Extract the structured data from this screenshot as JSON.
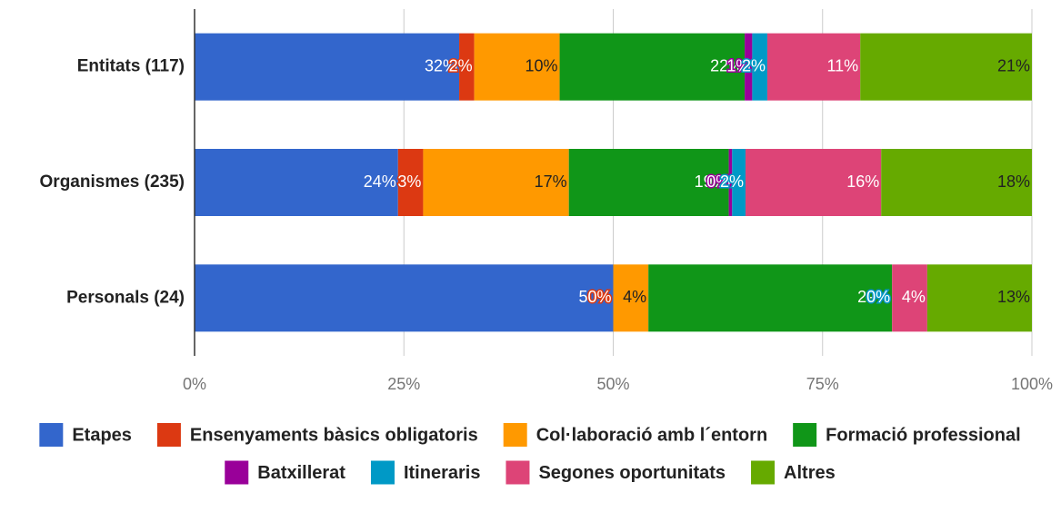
{
  "chart_data": {
    "type": "stacked-bar-horizontal",
    "categories": [
      "Entitats (117)",
      "Organismes (235)",
      "Personals (24)"
    ],
    "series": [
      {
        "name": "Etapes",
        "color": "#3366cc",
        "values": [
          31.6,
          24.3,
          50
        ],
        "value_labels": [
          "32%",
          "24%",
          "50%"
        ]
      },
      {
        "name": "Ensenyaments bàsics obligatoris",
        "color": "#dc3912",
        "values": [
          1.8,
          3.0,
          0
        ],
        "value_labels": [
          "2%",
          "3%",
          "0%"
        ]
      },
      {
        "name": "Col·laboració amb l´entorn",
        "color": "#ff9900",
        "values": [
          10.2,
          17.4,
          4.2
        ],
        "value_labels": [
          "10%",
          "17%",
          "4%"
        ]
      },
      {
        "name": "Formació professional",
        "color": "#109618",
        "values": [
          22.1,
          19.1,
          29.1
        ],
        "value_labels": [
          "22%",
          "19%",
          "29%"
        ]
      },
      {
        "name": "Batxillerat",
        "color": "#990099",
        "values": [
          0.9,
          0.4,
          0
        ],
        "value_labels": [
          "1%",
          "0%",
          "0%"
        ]
      },
      {
        "name": "Itineraris",
        "color": "#0099c6",
        "values": [
          1.8,
          1.6,
          0
        ],
        "value_labels": [
          "2%",
          "2%",
          "0%"
        ]
      },
      {
        "name": "Segones oportunitats",
        "color": "#dd4477",
        "values": [
          11.1,
          16.2,
          4.2
        ],
        "value_labels": [
          "11%",
          "16%",
          "4%"
        ]
      },
      {
        "name": "Altres",
        "color": "#66aa00",
        "values": [
          20.5,
          18.0,
          12.5
        ],
        "value_labels": [
          "21%",
          "18%",
          "13%"
        ]
      }
    ],
    "xlim": [
      0,
      100
    ],
    "xticks": [
      {
        "value": 0,
        "label": "0%"
      },
      {
        "value": 25,
        "label": "25%"
      },
      {
        "value": 50,
        "label": "50%"
      },
      {
        "value": 75,
        "label": "75%"
      },
      {
        "value": 100,
        "label": "100%"
      }
    ],
    "grid": true
  }
}
